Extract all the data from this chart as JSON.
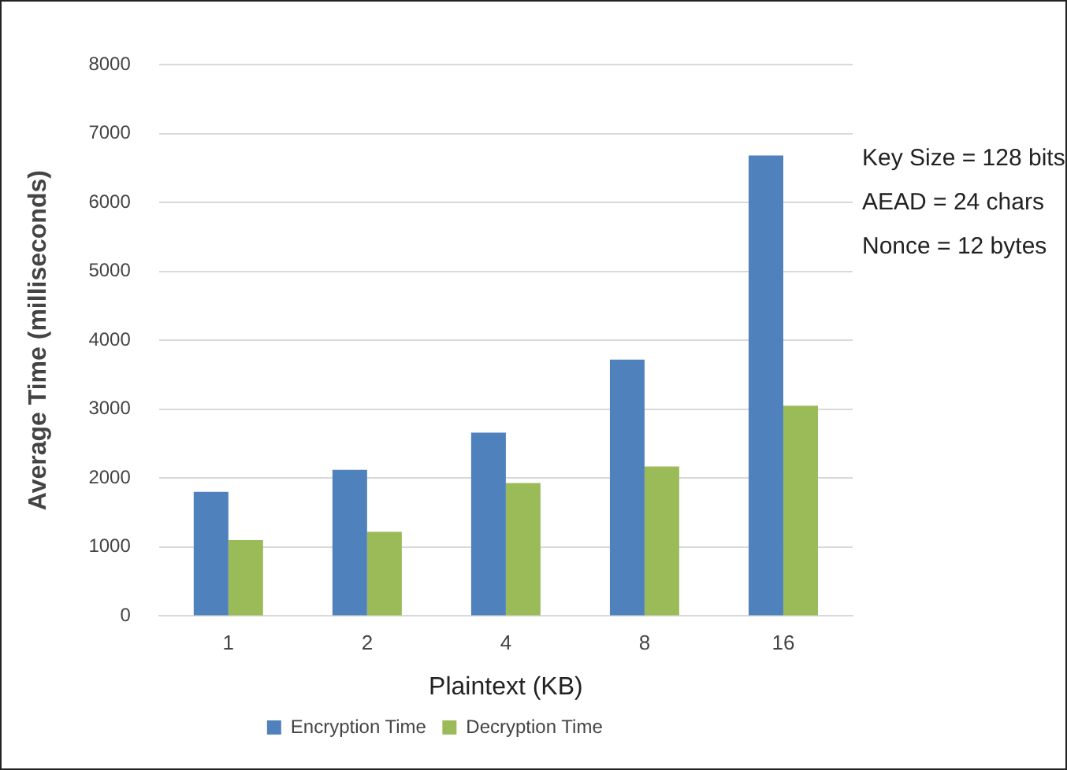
{
  "chart_data": {
    "type": "bar",
    "xlabel": "Plaintext (KB)",
    "ylabel": "Average Time (milliseconds)",
    "categories": [
      "1",
      "2",
      "4",
      "8",
      "16"
    ],
    "series": [
      {
        "name": "Encryption Time",
        "color": "#4f81bd",
        "values": [
          1800,
          2120,
          2660,
          3720,
          6680
        ]
      },
      {
        "name": "Decryption Time",
        "color": "#9bbb59",
        "values": [
          1100,
          1220,
          1930,
          2170,
          3050
        ]
      }
    ],
    "ylim": [
      0,
      8000
    ],
    "yticks": [
      0,
      1000,
      2000,
      3000,
      4000,
      5000,
      6000,
      7000,
      8000
    ],
    "grid": "y",
    "legend": "bottom",
    "annotations": [
      "Key Size = 128 bits",
      "AEAD = 24 chars",
      "Nonce = 12 bytes"
    ]
  }
}
